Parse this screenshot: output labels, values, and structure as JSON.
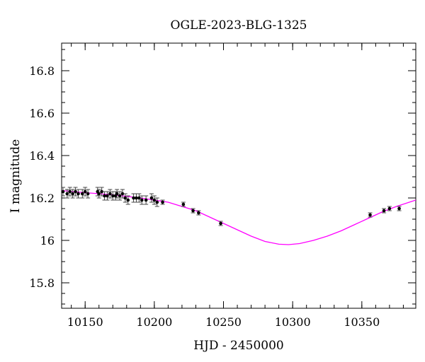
{
  "chart_data": {
    "type": "scatter",
    "title": "OGLE-2023-BLG-1325",
    "xlabel": "HJD - 2450000",
    "ylabel": "I magnitude",
    "xlim": [
      10133,
      10389
    ],
    "ylim": [
      16.93,
      15.68
    ],
    "y_inverted": true,
    "grid": false,
    "x_ticks": [
      10150,
      10200,
      10250,
      10300,
      10350
    ],
    "x_tick_labels": [
      "10150",
      "10200",
      "10250",
      "10300",
      "10350"
    ],
    "y_ticks": [
      15.8,
      16.0,
      16.2,
      16.4,
      16.6,
      16.8
    ],
    "y_tick_labels": [
      "15.8",
      "16",
      "16.2",
      "16.4",
      "16.6",
      "16.8"
    ],
    "x_minor_step": 10,
    "y_minor_step": 0.05,
    "colors": {
      "data": "#000000",
      "model": "#ff00ff"
    },
    "series": [
      {
        "kind": "points_with_errorbars",
        "x": [
          10134,
          10137,
          10139,
          10141,
          10143,
          10145,
          10148,
          10150,
          10152,
          10159,
          10160,
          10162,
          10164,
          10166,
          10168,
          10170,
          10172,
          10173,
          10175,
          10177,
          10179,
          10181,
          10185,
          10187,
          10189,
          10191,
          10194,
          10198,
          10200,
          10202,
          10206,
          10221,
          10228,
          10232,
          10248,
          10356,
          10366,
          10370,
          10377
        ],
        "y": [
          16.23,
          16.22,
          16.23,
          16.22,
          16.23,
          16.22,
          16.22,
          16.23,
          16.22,
          16.23,
          16.22,
          16.23,
          16.21,
          16.21,
          16.22,
          16.21,
          16.21,
          16.22,
          16.21,
          16.22,
          16.2,
          16.19,
          16.2,
          16.2,
          16.2,
          16.19,
          16.19,
          16.2,
          16.19,
          16.18,
          16.18,
          16.17,
          16.14,
          16.13,
          16.08,
          16.12,
          16.14,
          16.15,
          16.15
        ],
        "err": [
          0.02,
          0.02,
          0.02,
          0.02,
          0.02,
          0.02,
          0.02,
          0.02,
          0.02,
          0.02,
          0.02,
          0.02,
          0.02,
          0.02,
          0.02,
          0.02,
          0.02,
          0.02,
          0.02,
          0.02,
          0.02,
          0.02,
          0.02,
          0.02,
          0.02,
          0.02,
          0.02,
          0.02,
          0.02,
          0.02,
          0.01,
          0.01,
          0.01,
          0.01,
          0.01,
          0.01,
          0.01,
          0.01,
          0.01
        ]
      },
      {
        "kind": "model_curve",
        "x": [
          10133,
          10150,
          10170,
          10190,
          10210,
          10230,
          10250,
          10260,
          10270,
          10280,
          10290,
          10297,
          10305,
          10315,
          10325,
          10335,
          10345,
          10355,
          10365,
          10375,
          10389
        ],
        "y": [
          16.235,
          16.225,
          16.215,
          16.2,
          16.18,
          16.14,
          16.08,
          16.05,
          16.02,
          15.995,
          15.982,
          15.98,
          15.985,
          16.0,
          16.02,
          16.045,
          16.075,
          16.105,
          16.135,
          16.16,
          16.19
        ]
      }
    ]
  }
}
